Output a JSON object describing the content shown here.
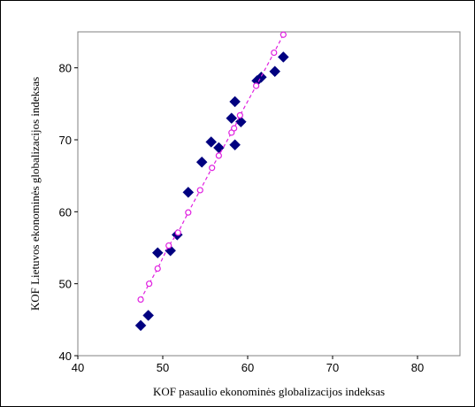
{
  "chart_data": {
    "type": "scatter",
    "xlabel": "KOF pasaulio ekonominės globalizacijos indeksas",
    "ylabel": "KOF Lietuvos ekonominės globalizacijos indeksas",
    "xlim": [
      40,
      85
    ],
    "ylim": [
      40,
      85
    ],
    "x_ticks": [
      40,
      50,
      60,
      70,
      80
    ],
    "y_ticks": [
      40,
      50,
      60,
      70,
      80
    ],
    "grid": false,
    "legend": "none",
    "series": [
      {
        "marker": "diamond",
        "color": "#000080",
        "points": [
          [
            47.4,
            44.2
          ],
          [
            48.3,
            45.6
          ],
          [
            49.4,
            54.3
          ],
          [
            50.9,
            54.6
          ],
          [
            51.7,
            56.8
          ],
          [
            53.0,
            62.7
          ],
          [
            54.6,
            66.9
          ],
          [
            55.7,
            69.7
          ],
          [
            56.6,
            68.9
          ],
          [
            58.1,
            73.0
          ],
          [
            58.5,
            75.3
          ],
          [
            58.5,
            69.3
          ],
          [
            59.2,
            72.5
          ],
          [
            61.1,
            78.2
          ],
          [
            61.6,
            78.7
          ],
          [
            63.2,
            79.5
          ],
          [
            64.2,
            81.5
          ]
        ]
      },
      {
        "marker": "open-circle",
        "line": "dashed",
        "color": "#e020e0",
        "points": [
          [
            47.4,
            47.8
          ],
          [
            48.4,
            50.0
          ],
          [
            49.4,
            52.1
          ],
          [
            50.7,
            55.3
          ],
          [
            51.8,
            57.1
          ],
          [
            53.0,
            59.9
          ],
          [
            54.4,
            63.0
          ],
          [
            55.8,
            66.1
          ],
          [
            56.6,
            67.8
          ],
          [
            58.1,
            71.0
          ],
          [
            58.4,
            71.6
          ],
          [
            59.1,
            73.4
          ],
          [
            61.0,
            77.5
          ],
          [
            63.1,
            82.1
          ],
          [
            64.2,
            84.6
          ]
        ]
      }
    ]
  }
}
